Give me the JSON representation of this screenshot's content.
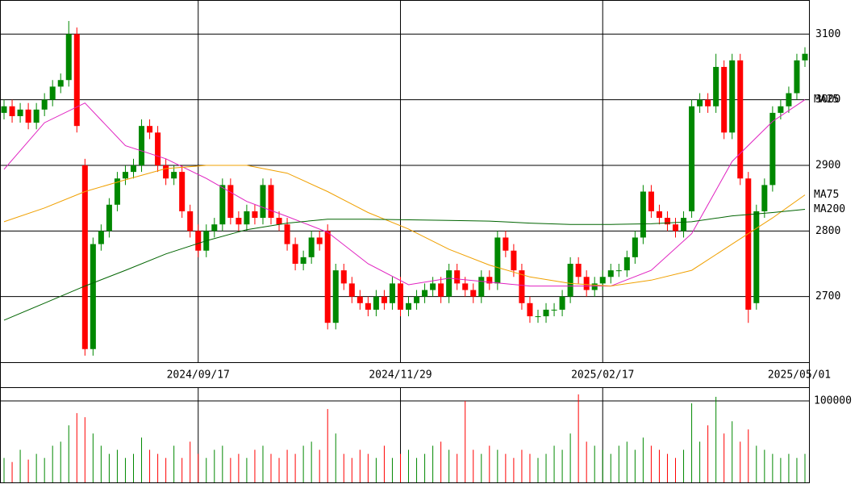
{
  "chart_data": {
    "type": "candlestick",
    "categories": [
      null,
      null,
      null,
      null,
      null,
      null,
      null,
      null,
      null,
      null,
      null,
      null,
      null,
      null,
      null,
      null,
      null,
      null,
      null,
      null,
      null,
      null,
      null,
      null,
      "2024/09/17",
      null,
      null,
      null,
      null,
      null,
      null,
      null,
      null,
      null,
      null,
      null,
      null,
      null,
      null,
      null,
      null,
      null,
      null,
      null,
      null,
      null,
      null,
      null,
      null,
      "2024/11/29",
      null,
      null,
      null,
      null,
      null,
      null,
      null,
      null,
      null,
      null,
      null,
      null,
      null,
      null,
      null,
      null,
      null,
      null,
      null,
      null,
      null,
      null,
      null,
      null,
      "2025/02/17",
      null,
      null,
      null,
      null,
      null,
      null,
      null,
      null,
      null,
      null,
      null,
      null,
      null,
      null,
      null,
      null,
      null,
      null,
      null,
      null,
      null,
      null,
      null,
      null,
      "2025/05/01"
    ],
    "open": [
      2980,
      2990,
      2975,
      2985,
      2965,
      2985,
      3000,
      3020,
      3030,
      3100,
      2900,
      2620,
      2780,
      2800,
      2840,
      2880,
      2890,
      2900,
      2960,
      2950,
      2900,
      2880,
      2890,
      2830,
      2800,
      2770,
      2800,
      2810,
      2870,
      2820,
      2810,
      2830,
      2820,
      2870,
      2820,
      2810,
      2780,
      2750,
      2760,
      2790,
      2800,
      2660,
      2740,
      2720,
      2700,
      2690,
      2680,
      2700,
      2690,
      2720,
      2680,
      2690,
      2700,
      2710,
      2720,
      2700,
      2740,
      2720,
      2710,
      2700,
      2730,
      2720,
      2790,
      2770,
      2740,
      2690,
      2670,
      2670,
      2680,
      2680,
      2700,
      2750,
      2730,
      2710,
      2720,
      2730,
      2740,
      2740,
      2760,
      2790,
      2860,
      2830,
      2820,
      2810,
      2800,
      2830,
      2990,
      3000,
      2990,
      3050,
      2950,
      3060,
      2880,
      2690,
      2830,
      2870,
      2980,
      2990,
      3010,
      3060
    ],
    "high": [
      3000,
      3000,
      2995,
      2995,
      2995,
      3010,
      3030,
      3040,
      3120,
      3110,
      2910,
      2790,
      2810,
      2850,
      2890,
      2900,
      2910,
      2970,
      2970,
      2960,
      2910,
      2900,
      2900,
      2840,
      2810,
      2810,
      2820,
      2880,
      2880,
      2830,
      2840,
      2840,
      2880,
      2880,
      2830,
      2820,
      2790,
      2770,
      2800,
      2800,
      2810,
      2750,
      2750,
      2730,
      2710,
      2700,
      2710,
      2710,
      2730,
      2730,
      2700,
      2710,
      2720,
      2730,
      2730,
      2750,
      2750,
      2730,
      2720,
      2740,
      2740,
      2800,
      2800,
      2780,
      2750,
      2700,
      2680,
      2690,
      2690,
      2710,
      2760,
      2760,
      2740,
      2730,
      2740,
      2750,
      2750,
      2770,
      2800,
      2870,
      2870,
      2840,
      2830,
      2820,
      2830,
      3000,
      3010,
      3010,
      3070,
      3060,
      3070,
      3070,
      2890,
      2840,
      2880,
      2990,
      3000,
      3020,
      3070,
      3080
    ],
    "low": [
      2970,
      2965,
      2965,
      2955,
      2955,
      2975,
      2990,
      3010,
      3020,
      2950,
      2610,
      2610,
      2770,
      2790,
      2830,
      2870,
      2880,
      2890,
      2940,
      2890,
      2870,
      2870,
      2820,
      2790,
      2760,
      2760,
      2790,
      2800,
      2810,
      2800,
      2800,
      2810,
      2810,
      2810,
      2800,
      2770,
      2740,
      2740,
      2750,
      2770,
      2650,
      2650,
      2710,
      2690,
      2680,
      2670,
      2670,
      2680,
      2680,
      2670,
      2670,
      2680,
      2690,
      2700,
      2690,
      2690,
      2710,
      2700,
      2690,
      2690,
      2710,
      2710,
      2760,
      2730,
      2680,
      2660,
      2660,
      2660,
      2670,
      2670,
      2690,
      2720,
      2700,
      2700,
      2710,
      2720,
      2730,
      2730,
      2750,
      2780,
      2820,
      2810,
      2800,
      2790,
      2790,
      2820,
      2980,
      2980,
      2980,
      2940,
      2940,
      2870,
      2660,
      2680,
      2820,
      2860,
      2970,
      2980,
      3000,
      3050
    ],
    "close": [
      2990,
      2975,
      2985,
      2965,
      2985,
      3000,
      3020,
      3030,
      3100,
      2960,
      2620,
      2780,
      2800,
      2840,
      2880,
      2890,
      2900,
      2960,
      2950,
      2900,
      2880,
      2890,
      2830,
      2800,
      2770,
      2800,
      2810,
      2870,
      2820,
      2810,
      2830,
      2820,
      2870,
      2820,
      2810,
      2780,
      2750,
      2760,
      2790,
      2780,
      2660,
      2740,
      2720,
      2700,
      2690,
      2680,
      2700,
      2690,
      2720,
      2680,
      2690,
      2700,
      2710,
      2720,
      2700,
      2740,
      2720,
      2710,
      2700,
      2730,
      2720,
      2790,
      2770,
      2740,
      2690,
      2670,
      2670,
      2680,
      2680,
      2700,
      2750,
      2730,
      2710,
      2720,
      2730,
      2740,
      2740,
      2760,
      2790,
      2860,
      2830,
      2820,
      2810,
      2800,
      2820,
      2990,
      3000,
      2990,
      3050,
      2950,
      3060,
      2880,
      2680,
      2830,
      2870,
      2980,
      2990,
      3010,
      3060,
      3070
    ],
    "volume": [
      30000,
      25000,
      40000,
      28000,
      35000,
      30000,
      45000,
      50000,
      70000,
      85000,
      80000,
      60000,
      45000,
      35000,
      40000,
      30000,
      35000,
      55000,
      40000,
      35000,
      30000,
      45000,
      30000,
      50000,
      35000,
      30000,
      40000,
      45000,
      30000,
      35000,
      30000,
      40000,
      45000,
      35000,
      30000,
      40000,
      35000,
      45000,
      50000,
      40000,
      90000,
      60000,
      35000,
      30000,
      40000,
      35000,
      30000,
      45000,
      30000,
      35000,
      40000,
      30000,
      35000,
      45000,
      50000,
      40000,
      35000,
      100000,
      40000,
      35000,
      45000,
      40000,
      35000,
      30000,
      40000,
      35000,
      30000,
      35000,
      45000,
      40000,
      60000,
      108000,
      50000,
      45000,
      40000,
      35000,
      45000,
      50000,
      40000,
      55000,
      45000,
      40000,
      35000,
      30000,
      40000,
      97000,
      50000,
      70000,
      105000,
      60000,
      75000,
      50000,
      65000,
      45000,
      40000,
      35000,
      30000,
      35000,
      30000,
      35000
    ],
    "up_color": "#008800",
    "down_color": "#ff0000",
    "ylim": [
      2600,
      3152
    ],
    "yticks": [
      2700,
      2800,
      2900,
      3000,
      3100
    ],
    "volume_ylim": [
      0,
      116800
    ],
    "volume_yticks": [
      100000
    ],
    "moving_averages": [
      {
        "name": "MA25",
        "color": "#e020c0",
        "x": [
          0,
          5,
          10,
          15,
          20,
          25,
          30,
          35,
          40,
          45,
          50,
          55,
          60,
          65,
          70,
          75,
          80,
          85,
          90,
          95,
          99
        ],
        "values": [
          2894,
          2965,
          2995,
          2930,
          2910,
          2880,
          2845,
          2822,
          2798,
          2750,
          2718,
          2728,
          2722,
          2716,
          2716,
          2716,
          2740,
          2796,
          2906,
          2967,
          3000
        ]
      },
      {
        "name": "MA75",
        "color": "#f0a000",
        "x": [
          0,
          5,
          10,
          15,
          20,
          25,
          30,
          35,
          40,
          45,
          50,
          55,
          60,
          65,
          70,
          75,
          80,
          85,
          90,
          95,
          99
        ],
        "values": [
          2814,
          2835,
          2860,
          2878,
          2895,
          2900,
          2900,
          2888,
          2860,
          2828,
          2803,
          2772,
          2748,
          2730,
          2720,
          2716,
          2725,
          2740,
          2780,
          2820,
          2855
        ]
      },
      {
        "name": "MA200",
        "color": "#006400",
        "x": [
          0,
          5,
          10,
          15,
          20,
          25,
          30,
          35,
          40,
          45,
          50,
          55,
          60,
          65,
          70,
          75,
          80,
          85,
          90,
          95,
          99
        ],
        "values": [
          2664,
          2690,
          2716,
          2740,
          2765,
          2785,
          2802,
          2812,
          2818,
          2818,
          2817,
          2816,
          2815,
          2812,
          2810,
          2810,
          2811,
          2814,
          2823,
          2828,
          2833
        ]
      }
    ]
  }
}
